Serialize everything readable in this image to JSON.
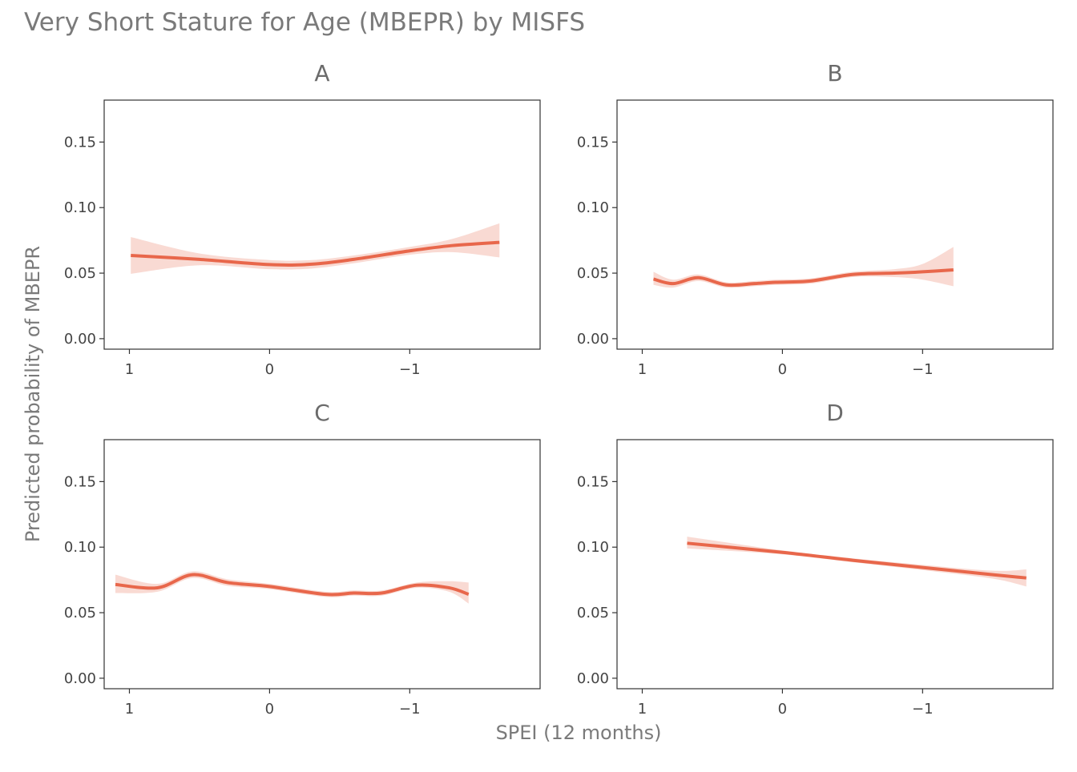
{
  "chart_data": {
    "type": "line",
    "title": "Very Short Stature for Age (MBEPR) by MISFS",
    "xlabel": "SPEI (12 months)",
    "ylabel": "Predicted probability of MBEPR",
    "x_reversed": true,
    "xlim": [
      1.18,
      -1.93
    ],
    "ylim": [
      -0.008,
      0.182
    ],
    "x_ticks": [
      1,
      0,
      -1
    ],
    "x_tick_labels": [
      "1",
      "0",
      "−1"
    ],
    "y_ticks": [
      0.0,
      0.05,
      0.1,
      0.15
    ],
    "y_tick_labels": [
      "0.00",
      "0.05",
      "0.10",
      "0.15"
    ],
    "grid": false,
    "colors": {
      "line": "#e8674b",
      "ribbon": "#f8d3cb"
    },
    "panels": [
      {
        "label": "A",
        "x": [
          0.99,
          0.5,
          0.0,
          -0.3,
          -0.6,
          -1.0,
          -1.3,
          -1.64
        ],
        "y": [
          0.0635,
          0.0605,
          0.0565,
          0.0568,
          0.0605,
          0.067,
          0.071,
          0.0735
        ],
        "lower": [
          0.0495,
          0.056,
          0.053,
          0.0535,
          0.0575,
          0.064,
          0.066,
          0.062
        ],
        "upper": [
          0.0775,
          0.065,
          0.06,
          0.06,
          0.0635,
          0.07,
          0.076,
          0.088
        ]
      },
      {
        "label": "B",
        "x": [
          0.92,
          0.78,
          0.6,
          0.4,
          0.2,
          0.05,
          -0.2,
          -0.5,
          -0.8,
          -1.0,
          -1.22
        ],
        "y": [
          0.0455,
          0.042,
          0.0465,
          0.041,
          0.042,
          0.043,
          0.044,
          0.049,
          0.05,
          0.051,
          0.0525
        ],
        "lower": [
          0.041,
          0.039,
          0.044,
          0.039,
          0.04,
          0.041,
          0.042,
          0.047,
          0.047,
          0.045,
          0.04
        ],
        "upper": [
          0.051,
          0.045,
          0.049,
          0.043,
          0.044,
          0.045,
          0.046,
          0.051,
          0.053,
          0.057,
          0.07
        ]
      },
      {
        "label": "C",
        "x": [
          1.1,
          0.8,
          0.55,
          0.3,
          0.0,
          -0.4,
          -0.6,
          -0.8,
          -1.05,
          -1.28,
          -1.42
        ],
        "y": [
          0.0715,
          0.069,
          0.079,
          0.073,
          0.07,
          0.064,
          0.065,
          0.065,
          0.071,
          0.069,
          0.064
        ],
        "lower": [
          0.065,
          0.066,
          0.0765,
          0.0705,
          0.068,
          0.062,
          0.063,
          0.063,
          0.069,
          0.066,
          0.057
        ],
        "upper": [
          0.079,
          0.072,
          0.0815,
          0.0755,
          0.072,
          0.066,
          0.067,
          0.067,
          0.073,
          0.074,
          0.073
        ]
      },
      {
        "label": "D",
        "x": [
          0.68,
          0.0,
          -0.5,
          -1.0,
          -1.5,
          -1.74
        ],
        "y": [
          0.103,
          0.096,
          0.09,
          0.0845,
          0.079,
          0.0765
        ],
        "lower": [
          0.099,
          0.0945,
          0.0885,
          0.0825,
          0.076,
          0.07
        ],
        "upper": [
          0.108,
          0.0975,
          0.0915,
          0.0865,
          0.082,
          0.083
        ]
      }
    ]
  }
}
